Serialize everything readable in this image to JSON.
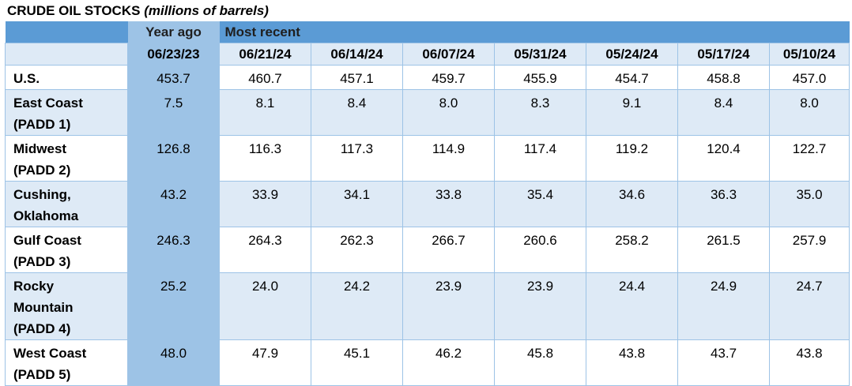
{
  "title": {
    "main": "CRUDE OIL STOCKS",
    "unit": "(millions of barrels)"
  },
  "header": {
    "year_ago": "Year ago",
    "most_recent": "Most recent",
    "dates": [
      "06/23/23",
      "06/21/24",
      "06/14/24",
      "06/07/24",
      "05/31/24",
      "05/24/24",
      "05/17/24",
      "05/10/24"
    ]
  },
  "rows": [
    {
      "lines": [
        "U.S."
      ],
      "values": [
        "453.7",
        "460.7",
        "457.1",
        "459.7",
        "455.9",
        "454.7",
        "458.8",
        "457.0"
      ]
    },
    {
      "lines": [
        "East Coast",
        "(PADD 1)"
      ],
      "values": [
        "7.5",
        "8.1",
        "8.4",
        "8.0",
        "8.3",
        "9.1",
        "8.4",
        "8.0"
      ]
    },
    {
      "lines": [
        "Midwest",
        "(PADD 2)"
      ],
      "values": [
        "126.8",
        "116.3",
        "117.3",
        "114.9",
        "117.4",
        "119.2",
        "120.4",
        "122.7"
      ]
    },
    {
      "lines": [
        "Cushing,",
        "Oklahoma"
      ],
      "values": [
        "43.2",
        "33.9",
        "34.1",
        "33.8",
        "35.4",
        "34.6",
        "36.3",
        "35.0"
      ]
    },
    {
      "lines": [
        "Gulf Coast",
        "(PADD 3)"
      ],
      "values": [
        "246.3",
        "264.3",
        "262.3",
        "266.7",
        "260.6",
        "258.2",
        "261.5",
        "257.9"
      ]
    },
    {
      "lines": [
        "Rocky",
        "Mountain",
        "(PADD 4)"
      ],
      "values": [
        "25.2",
        "24.0",
        "24.2",
        "23.9",
        "23.9",
        "24.4",
        "24.9",
        "24.7"
      ]
    },
    {
      "lines": [
        "West Coast",
        "(PADD 5)"
      ],
      "values": [
        "48.0",
        "47.9",
        "45.1",
        "46.2",
        "45.8",
        "43.8",
        "43.7",
        "43.8"
      ]
    }
  ]
}
